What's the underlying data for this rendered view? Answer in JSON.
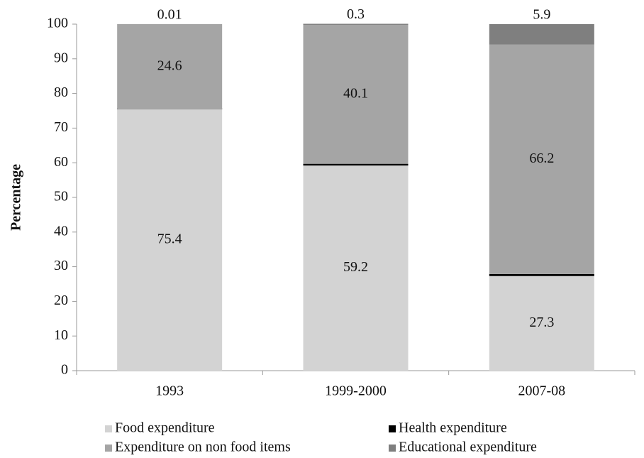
{
  "chart_data": {
    "type": "stacked_bar",
    "y_label": "Percentage",
    "categories": [
      "1993",
      "1999-2000",
      "2007-08"
    ],
    "series": [
      {
        "name": "Food expenditure",
        "color": "#d3d3d3",
        "values": [
          75.4,
          59.2,
          27.3
        ]
      },
      {
        "name": "Health expenditure",
        "color": "#000000",
        "values": [
          0.01,
          0.5,
          0.6
        ]
      },
      {
        "name": "Expenditure on non food items",
        "color": "#a5a5a5",
        "values": [
          24.6,
          40.1,
          66.2
        ]
      },
      {
        "name": "Educational expenditure",
        "color": "#7f7f7f",
        "values": [
          0.01,
          0.3,
          5.9
        ]
      }
    ],
    "ylim": [
      0,
      100
    ],
    "yticks": [
      0,
      10,
      20,
      30,
      40,
      50,
      60,
      70,
      80,
      90,
      100
    ]
  }
}
